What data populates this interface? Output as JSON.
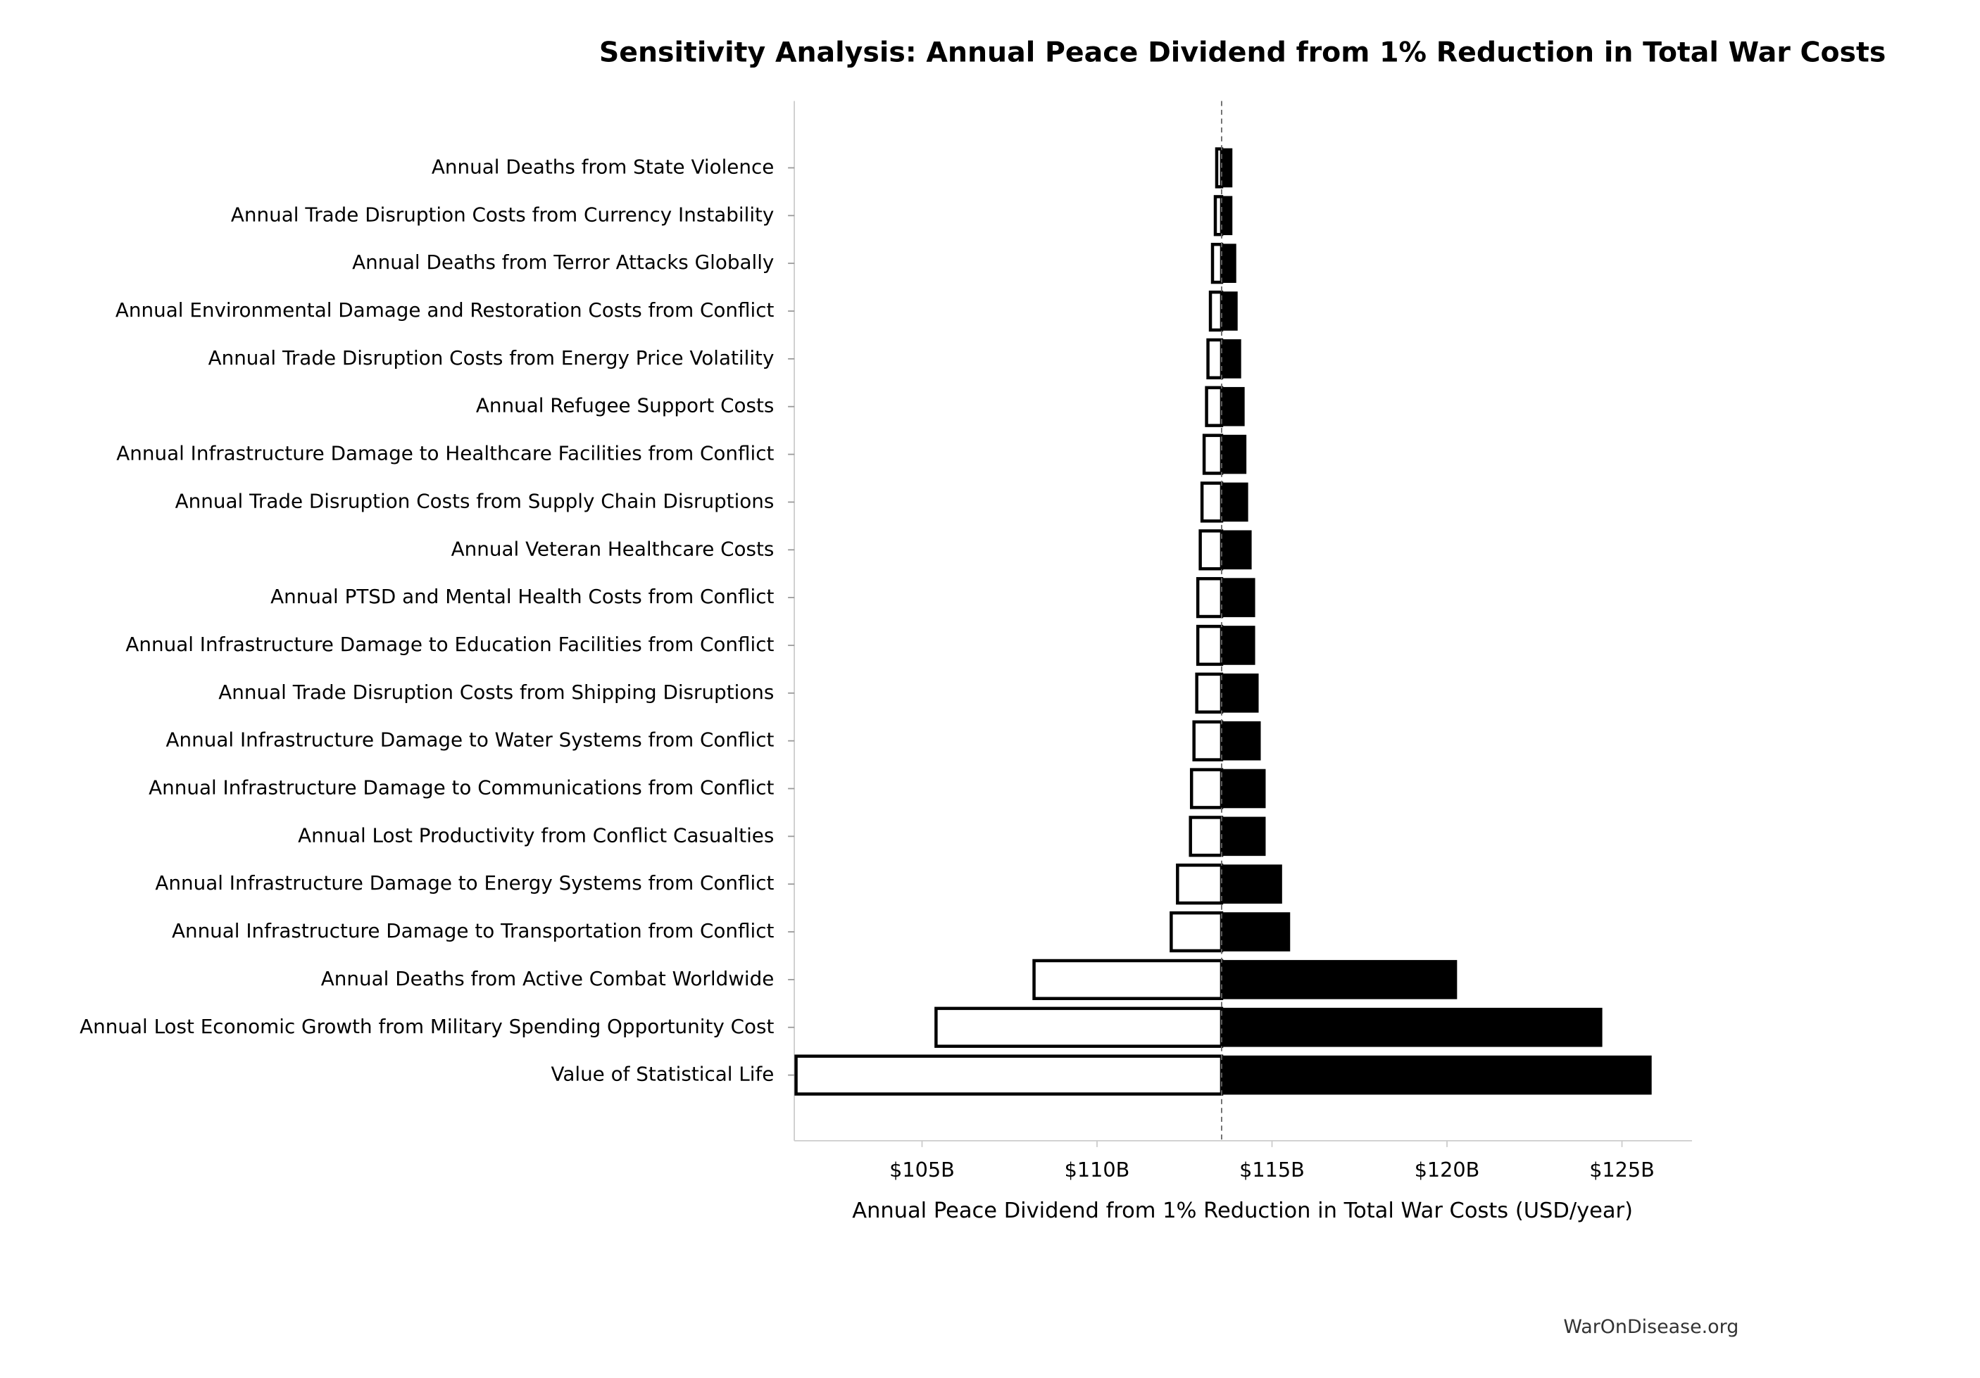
{
  "chart_data": {
    "type": "tornado",
    "title": "Sensitivity Analysis: Annual Peace Dividend from 1% Reduction in Total War Costs",
    "x_label": "Annual Peace Dividend from 1% Reduction in Total War Costs (USD/year)",
    "footer": "WarOnDisease.org",
    "categories": [
      "Annual Deaths from State Violence",
      "Annual Trade Disruption Costs from Currency Instability",
      "Annual Deaths from Terror Attacks Globally",
      "Annual Environmental Damage and Restoration Costs from Conflict",
      "Annual Trade Disruption Costs from Energy Price Volatility",
      "Annual Refugee Support Costs",
      "Annual Infrastructure Damage to Healthcare Facilities from Conflict",
      "Annual Trade Disruption Costs from Supply Chain Disruptions",
      "Annual Veteran Healthcare Costs",
      "Annual PTSD and Mental Health Costs from Conflict",
      "Annual Infrastructure Damage to Education Facilities from Conflict",
      "Annual Trade Disruption Costs from Shipping Disruptions",
      "Annual Infrastructure Damage to Water Systems from Conflict",
      "Annual Infrastructure Damage to Communications from Conflict",
      "Annual Lost Productivity from Conflict Casualties",
      "Annual Infrastructure Damage to Energy Systems from Conflict",
      "Annual Infrastructure Damage to Transportation from Conflict",
      "Annual Deaths from Active Combat Worldwide",
      "Annual Lost Economic Growth from Military Spending Opportunity Cost",
      "Value of Statistical Life"
    ],
    "low": [
      113.42,
      113.38,
      113.3,
      113.24,
      113.17,
      113.13,
      113.06,
      113.0,
      112.95,
      112.88,
      112.88,
      112.85,
      112.77,
      112.7,
      112.67,
      112.3,
      112.12,
      108.2,
      105.4,
      101.4
    ],
    "high": [
      113.85,
      113.85,
      113.96,
      114.0,
      114.1,
      114.2,
      114.25,
      114.3,
      114.4,
      114.5,
      114.5,
      114.6,
      114.66,
      114.8,
      114.8,
      115.27,
      115.5,
      120.27,
      124.42,
      125.83
    ],
    "baseline": 113.56,
    "low_color": "#ffffff",
    "high_color": "#000000",
    "xlim": [
      101.35,
      127.0
    ],
    "xticks": [
      {
        "value": 105,
        "label": "$105B"
      },
      {
        "value": 110,
        "label": "$110B"
      },
      {
        "value": 115,
        "label": "$115B"
      },
      {
        "value": 120,
        "label": "$120B"
      },
      {
        "value": 125,
        "label": "$125B"
      }
    ]
  }
}
